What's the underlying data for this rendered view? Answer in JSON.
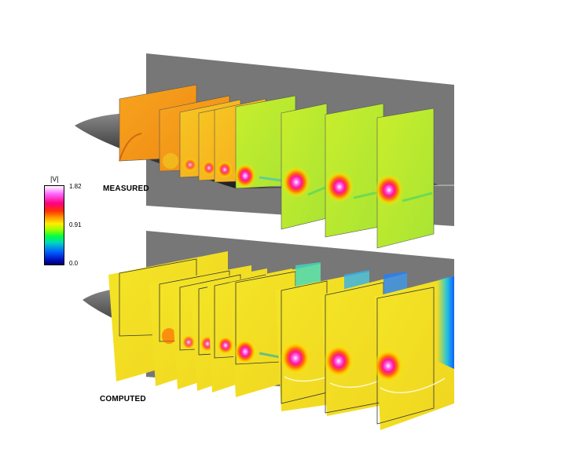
{
  "legend": {
    "title": "|V|",
    "max_label": "1.82",
    "mid_label": "0.91",
    "min_label": "0.0"
  },
  "panels": {
    "top_label": "MEASURED",
    "bottom_label": "COMPUTED"
  },
  "colors": {
    "wall": "#777777",
    "wing": "#3a3a3a",
    "plane_orange": "#f59a1e",
    "plane_yellow": "#f2e022",
    "plane_green": "#b8e830",
    "vortex_core": "#ff1ba0"
  }
}
